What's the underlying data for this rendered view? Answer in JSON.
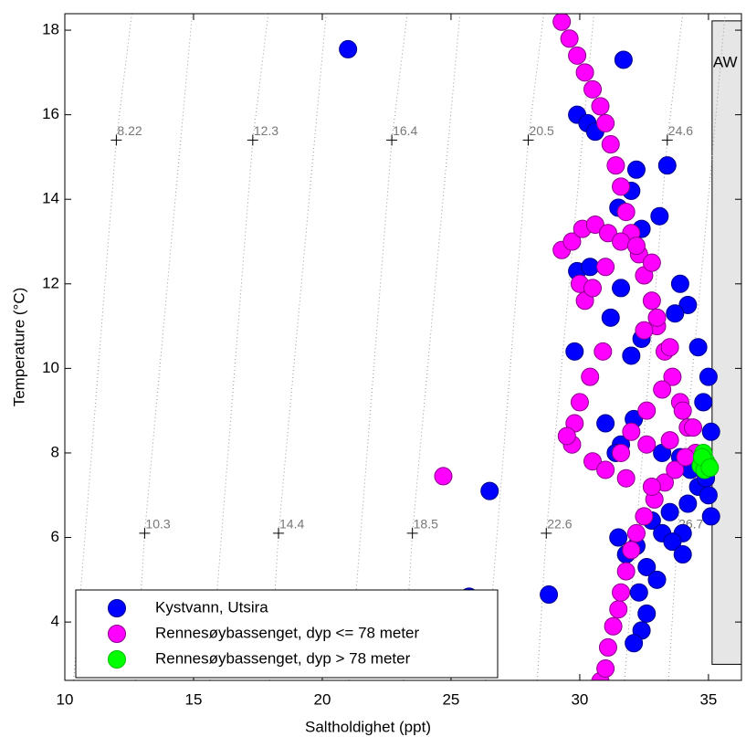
{
  "chart_data": {
    "type": "scatter",
    "xlabel": "Saltholdighet (ppt)",
    "ylabel": "Temperature (°C)",
    "xlim": [
      10,
      36.28
    ],
    "ylim": [
      2.62,
      18.39
    ],
    "xticks": [
      10,
      15,
      20,
      25,
      30,
      35
    ],
    "yticks": [
      4,
      6,
      8,
      10,
      12,
      14,
      16,
      18
    ],
    "grid": false,
    "legend": "lower left",
    "region": {
      "label": "AW",
      "xlim": [
        35.14,
        36.4
      ],
      "ylim": [
        3.0,
        18.22
      ],
      "color": "#e6e6e6"
    },
    "contours": [
      {
        "label": "8.22",
        "x": [
          10.34,
          12,
          12.6
        ],
        "y": [
          2.62,
          15.4,
          18.39
        ],
        "marker": [
          12,
          15.4
        ]
      },
      {
        "label": "12.3",
        "x": [
          15.64,
          17.3,
          17.9
        ],
        "y": [
          2.62,
          15.4,
          18.39
        ],
        "marker": [
          17.3,
          15.4
        ]
      },
      {
        "label": "16.4",
        "x": [
          21.04,
          22.7,
          23.3
        ],
        "y": [
          2.62,
          15.4,
          18.39
        ],
        "marker": [
          22.7,
          15.4
        ]
      },
      {
        "label": "20.5",
        "x": [
          26.34,
          28,
          28.6
        ],
        "y": [
          2.62,
          15.4,
          18.39
        ],
        "marker": [
          28,
          15.4
        ]
      },
      {
        "label": "24.6",
        "x": [
          31.74,
          33.4,
          34.0
        ],
        "y": [
          2.62,
          15.4,
          18.39
        ],
        "marker": [
          33.4,
          15.4
        ]
      },
      {
        "label": "10.3",
        "x": [
          12.75,
          13.1,
          14.95
        ],
        "y": [
          2.62,
          6.1,
          18.39
        ],
        "marker": [
          13.1,
          6.1
        ]
      },
      {
        "label": "14.4",
        "x": [
          17.95,
          18.3,
          20.15
        ],
        "y": [
          2.62,
          6.1,
          18.39
        ],
        "marker": [
          18.3,
          6.1
        ]
      },
      {
        "label": "18.5",
        "x": [
          23.15,
          23.5,
          25.35
        ],
        "y": [
          2.62,
          6.1,
          18.39
        ],
        "marker": [
          23.5,
          6.1
        ]
      },
      {
        "label": "22.6",
        "x": [
          28.35,
          28.7,
          30.55
        ],
        "y": [
          2.62,
          6.1,
          18.39
        ],
        "marker": [
          28.7,
          6.1
        ]
      },
      {
        "label": "26.7",
        "x": [
          33.45,
          33.8,
          35.65
        ],
        "y": [
          2.62,
          6.1,
          18.39
        ],
        "marker": [
          33.8,
          6.1
        ]
      }
    ],
    "series": [
      {
        "name": "Kystvann, Utsira",
        "color": "#0000ff",
        "edgecolor": "#00008c",
        "x": [
          21.0,
          31.7,
          29.9,
          30.3,
          30.6,
          32.2,
          33.4,
          32.0,
          31.5,
          33.1,
          32.4,
          29.9,
          30.4,
          31.2,
          31.6,
          33.9,
          34.2,
          33.7,
          29.8,
          32.0,
          32.4,
          34.6,
          35.0,
          34.8,
          31.0,
          31.6,
          32.1,
          31.4,
          33.2,
          35.1,
          34.6,
          35.0,
          34.2,
          35.1,
          33.5,
          32.8,
          33.2,
          34.0,
          31.5,
          32.2,
          33.6,
          32.6,
          33.0,
          34.0,
          31.8,
          32.3,
          26.5,
          25.7,
          28.8,
          32.6,
          32.4,
          32.1,
          34.3,
          34.9,
          33.9
        ],
        "values": [
          17.55,
          17.3,
          16.0,
          15.8,
          15.6,
          14.7,
          14.8,
          14.2,
          13.8,
          13.6,
          13.3,
          12.3,
          12.4,
          11.2,
          11.9,
          12.0,
          11.5,
          11.3,
          10.4,
          10.3,
          10.7,
          10.5,
          9.8,
          9.2,
          8.7,
          8.2,
          8.8,
          8.0,
          8.0,
          8.5,
          7.2,
          7.0,
          6.8,
          6.5,
          6.6,
          6.4,
          6.1,
          6.1,
          6.0,
          5.8,
          5.9,
          5.3,
          5.0,
          5.6,
          5.6,
          4.7,
          7.1,
          4.6,
          4.65,
          4.2,
          3.8,
          3.5,
          7.6,
          7.4,
          7.9
        ]
      },
      {
        "name": "Rennesøybassenget, dyp <= 78 meter",
        "color": "#ff00ff",
        "edgecolor": "#8b008b",
        "x": [
          29.3,
          29.6,
          29.9,
          30.2,
          30.5,
          30.8,
          31.0,
          31.2,
          31.4,
          31.6,
          31.8,
          32.0,
          32.3,
          32.5,
          32.8,
          33.0,
          33.3,
          33.6,
          33.9,
          34.2,
          34.5,
          30.8,
          31.0,
          31.1,
          31.3,
          31.5,
          31.6,
          31.8,
          32.0,
          32.2,
          32.5,
          32.9,
          33.3,
          33.7,
          34.1,
          29.3,
          29.7,
          30.1,
          30.6,
          31.1,
          31.6,
          32.2,
          32.8,
          30.0,
          30.2,
          30.5,
          31.0,
          30.9,
          30.4,
          30.0,
          29.8,
          29.7,
          32.5,
          33.0,
          33.5,
          33.2,
          32.6,
          32.0,
          31.6,
          30.5,
          31.0,
          31.8,
          32.8,
          33.5,
          34.0,
          34.4,
          29.5,
          24.7,
          32.6
        ],
        "values": [
          18.2,
          17.8,
          17.4,
          17.0,
          16.6,
          16.2,
          15.8,
          15.3,
          14.8,
          14.3,
          13.7,
          13.2,
          12.7,
          12.2,
          11.6,
          11.0,
          10.4,
          9.8,
          9.2,
          8.6,
          8.0,
          2.6,
          2.9,
          3.4,
          3.9,
          4.3,
          4.7,
          5.2,
          5.7,
          6.1,
          6.5,
          6.9,
          7.3,
          7.6,
          7.9,
          12.8,
          13.0,
          13.3,
          13.4,
          13.2,
          13.0,
          12.9,
          12.5,
          12.0,
          11.6,
          11.9,
          12.4,
          10.4,
          9.8,
          9.2,
          8.7,
          8.2,
          10.9,
          11.2,
          10.5,
          9.5,
          9.0,
          8.5,
          8.0,
          7.8,
          7.6,
          7.4,
          7.2,
          8.3,
          9.0,
          8.6,
          8.4,
          7.45,
          8.2
        ]
      },
      {
        "name": "Rennesøybassenget, dyp > 78 meter",
        "color": "#00ff00",
        "edgecolor": "#00c000",
        "x": [
          34.7,
          34.8,
          34.9,
          35.0,
          34.85,
          34.75,
          35.05
        ],
        "values": [
          7.7,
          8.0,
          7.8,
          7.7,
          7.6,
          7.9,
          7.65
        ]
      }
    ]
  }
}
